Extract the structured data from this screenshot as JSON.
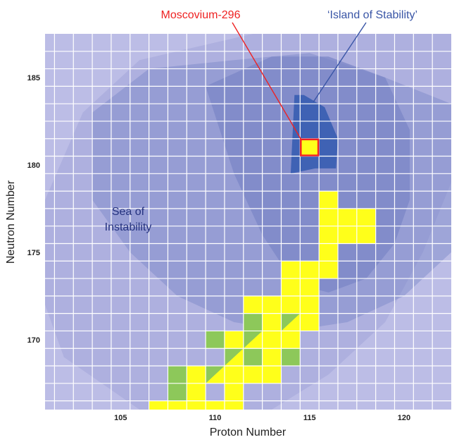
{
  "chart_data": {
    "type": "heatmap",
    "xlabel": "Proton Number",
    "ylabel": "Neutron Number",
    "xlim": [
      101,
      122.5
    ],
    "ylim": [
      166,
      187.5
    ],
    "x_ticks": [
      {
        "value": 105,
        "label": "105"
      },
      {
        "value": 110,
        "label": "110"
      },
      {
        "value": 115,
        "label": "115"
      },
      {
        "value": 120,
        "label": "120"
      }
    ],
    "y_ticks": [
      {
        "value": 170,
        "label": "170"
      },
      {
        "value": 175,
        "label": "175"
      },
      {
        "value": 180,
        "label": "180"
      },
      {
        "value": 185,
        "label": "185"
      }
    ],
    "grid": true,
    "colors": {
      "background": "#bcbde6",
      "grid": "#ffffff",
      "yellow_cell": "#ffff1a",
      "green_cell": "#8dc85a",
      "region_light": "#a2a6d8",
      "region_mid": "#7b87c7",
      "region_core": "#3f62b4",
      "highlight_border": "#ee2222",
      "label_red": "#ee2222",
      "label_blue": "#3955a6",
      "label_navy": "#23317e"
    },
    "nuclide_cells": [
      {
        "z": 107,
        "n": 166,
        "color": "yellow"
      },
      {
        "z": 108,
        "n": 166,
        "color": "yellow"
      },
      {
        "z": 109,
        "n": 166,
        "color": "yellow"
      },
      {
        "z": 110,
        "n": 166,
        "color": "yellow"
      },
      {
        "z": 111,
        "n": 166,
        "color": "yellow"
      },
      {
        "z": 108,
        "n": 167,
        "color": "green"
      },
      {
        "z": 109,
        "n": 167,
        "color": "yellow"
      },
      {
        "z": 111,
        "n": 167,
        "color": "yellow"
      },
      {
        "z": 108,
        "n": 168,
        "color": "green"
      },
      {
        "z": 109,
        "n": 168,
        "color": "yellow"
      },
      {
        "z": 110,
        "n": 168,
        "color": "split"
      },
      {
        "z": 111,
        "n": 168,
        "color": "yellow"
      },
      {
        "z": 112,
        "n": 168,
        "color": "yellow"
      },
      {
        "z": 113,
        "n": 168,
        "color": "yellow"
      },
      {
        "z": 111,
        "n": 169,
        "color": "split"
      },
      {
        "z": 112,
        "n": 169,
        "color": "green"
      },
      {
        "z": 113,
        "n": 169,
        "color": "yellow"
      },
      {
        "z": 114,
        "n": 169,
        "color": "green"
      },
      {
        "z": 110,
        "n": 170,
        "color": "green"
      },
      {
        "z": 111,
        "n": 170,
        "color": "yellow"
      },
      {
        "z": 112,
        "n": 170,
        "color": "split"
      },
      {
        "z": 113,
        "n": 170,
        "color": "yellow"
      },
      {
        "z": 114,
        "n": 170,
        "color": "yellow"
      },
      {
        "z": 112,
        "n": 171,
        "color": "green"
      },
      {
        "z": 113,
        "n": 171,
        "color": "yellow"
      },
      {
        "z": 114,
        "n": 171,
        "color": "split"
      },
      {
        "z": 115,
        "n": 171,
        "color": "yellow"
      },
      {
        "z": 112,
        "n": 172,
        "color": "yellow"
      },
      {
        "z": 113,
        "n": 172,
        "color": "yellow"
      },
      {
        "z": 114,
        "n": 172,
        "color": "yellow"
      },
      {
        "z": 115,
        "n": 172,
        "color": "yellow"
      },
      {
        "z": 114,
        "n": 173,
        "color": "yellow"
      },
      {
        "z": 115,
        "n": 173,
        "color": "yellow"
      },
      {
        "z": 114,
        "n": 174,
        "color": "yellow"
      },
      {
        "z": 115,
        "n": 174,
        "color": "yellow"
      },
      {
        "z": 116,
        "n": 174,
        "color": "yellow"
      },
      {
        "z": 116,
        "n": 175,
        "color": "yellow"
      },
      {
        "z": 116,
        "n": 176,
        "color": "yellow"
      },
      {
        "z": 117,
        "n": 176,
        "color": "yellow"
      },
      {
        "z": 118,
        "n": 176,
        "color": "yellow"
      },
      {
        "z": 116,
        "n": 177,
        "color": "yellow"
      },
      {
        "z": 117,
        "n": 177,
        "color": "yellow"
      },
      {
        "z": 118,
        "n": 177,
        "color": "yellow"
      },
      {
        "z": 116,
        "n": 178,
        "color": "yellow"
      }
    ],
    "regions": [
      {
        "name": "outer",
        "points": [
          [
            101,
            178
          ],
          [
            103,
            183
          ],
          [
            106,
            186
          ],
          [
            112,
            187.5
          ],
          [
            122.5,
            187.5
          ],
          [
            122.5,
            179
          ],
          [
            121,
            175
          ],
          [
            119,
            171
          ],
          [
            116,
            168
          ],
          [
            113,
            166
          ],
          [
            106,
            166
          ],
          [
            102,
            169
          ],
          [
            101,
            172
          ]
        ]
      },
      {
        "name": "middle",
        "points": [
          [
            103.5,
            183
          ],
          [
            106.5,
            185.5
          ],
          [
            111,
            186
          ],
          [
            115,
            186.4
          ],
          [
            119,
            185
          ],
          [
            122.5,
            183.5
          ],
          [
            122.5,
            175
          ],
          [
            120,
            172.5
          ],
          [
            117,
            171
          ],
          [
            114,
            170.5
          ],
          [
            111,
            171
          ],
          [
            108,
            172.5
          ],
          [
            105.5,
            175
          ],
          [
            103.5,
            178
          ]
        ]
      },
      {
        "name": "inner",
        "points": [
          [
            109.5,
            184.5
          ],
          [
            113,
            186.2
          ],
          [
            116,
            186.2
          ],
          [
            119,
            185
          ],
          [
            120.3,
            182
          ],
          [
            120.3,
            178
          ],
          [
            119.5,
            175.5
          ],
          [
            118,
            173.5
          ],
          [
            116,
            172.7
          ],
          [
            114.2,
            173.2
          ],
          [
            112.5,
            176
          ],
          [
            111,
            179.5
          ]
        ]
      },
      {
        "name": "core",
        "points": [
          [
            114.2,
            184
          ],
          [
            114.7,
            184
          ],
          [
            115.8,
            183.3
          ],
          [
            116.5,
            181.5
          ],
          [
            116.4,
            179.8
          ],
          [
            115.3,
            179.8
          ],
          [
            114,
            179.5
          ]
        ]
      }
    ],
    "highlight_cell": {
      "z": 115,
      "n": 181
    },
    "annotations": [
      {
        "id": "moscovium",
        "text": "Moscovium-296",
        "color": "red",
        "anchor_z": 115,
        "anchor_n": 181
      },
      {
        "id": "island",
        "text": "‘Island of Stability’",
        "color": "blue",
        "anchor_z": 115.2,
        "anchor_n": 183.6
      },
      {
        "id": "sea_line1",
        "text": "Sea of",
        "color": "navy"
      },
      {
        "id": "sea_line2",
        "text": "Instability",
        "color": "navy"
      }
    ]
  }
}
